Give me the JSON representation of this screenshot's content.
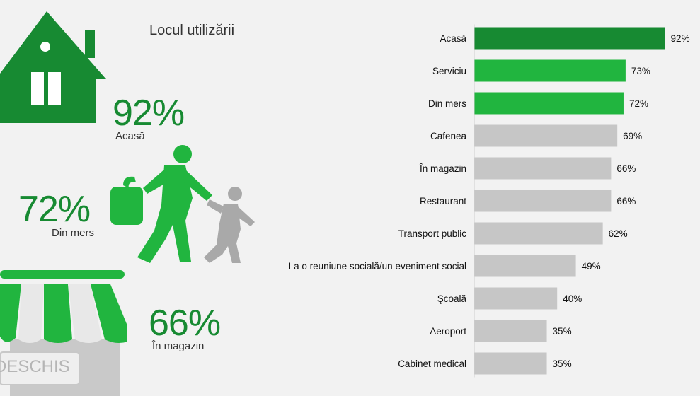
{
  "title": "Locul utilizării",
  "highlights": [
    {
      "value": "92%",
      "label": "Acasă"
    },
    {
      "value": "72%",
      "label": "Din mers"
    },
    {
      "value": "66%",
      "label": "În magazin"
    }
  ],
  "shop_sign": "DESCHIS",
  "colors": {
    "dark_green": "#178a32",
    "green": "#21b53f",
    "gray": "#c6c6c6",
    "icon_gray": "#a9a9a9"
  },
  "chart_data": {
    "type": "bar",
    "orientation": "horizontal",
    "categories": [
      "Acasă",
      "Serviciu",
      "Din mers",
      "Cafenea",
      "În magazin",
      "Restaurant",
      "Transport public",
      "La o reuniune socială/un eveniment social",
      "Şcoală",
      "Aeroport",
      "Cabinet medical"
    ],
    "values": [
      92,
      73,
      72,
      69,
      66,
      66,
      62,
      49,
      40,
      35,
      35
    ],
    "value_labels": [
      "92%",
      "73%",
      "72%",
      "69%",
      "66%",
      "66%",
      "62%",
      "49%",
      "40%",
      "35%",
      "35%"
    ],
    "bar_colors": [
      "#178a32",
      "#21b53f",
      "#21b53f",
      "#c6c6c6",
      "#c6c6c6",
      "#c6c6c6",
      "#c6c6c6",
      "#c6c6c6",
      "#c6c6c6",
      "#c6c6c6",
      "#c6c6c6"
    ],
    "xlim": [
      0,
      100
    ],
    "grid": false,
    "legend": "none",
    "title": "",
    "xlabel": "",
    "ylabel": ""
  }
}
